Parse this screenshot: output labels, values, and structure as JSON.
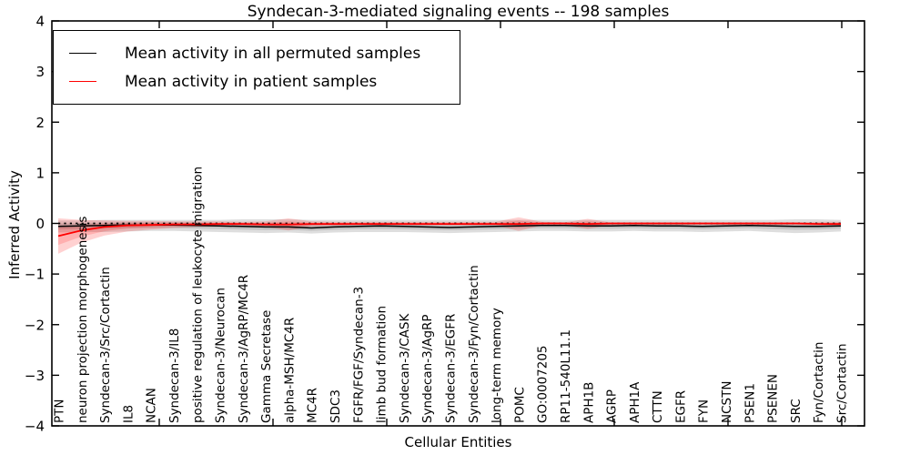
{
  "figure": {
    "title": "Syndecan-3-mediated signaling events -- 198 samples"
  },
  "legend": {
    "items": [
      {
        "label": "Mean activity in all permuted samples",
        "color": "#000000"
      },
      {
        "label": "Mean activity in patient samples",
        "color": "#ff0000"
      }
    ]
  },
  "chart_data": {
    "type": "line",
    "title": "Syndecan-3-mediated signaling events -- 198 samples",
    "xlabel": "Cellular Entities",
    "ylabel": "Inferred Activity",
    "ylim": [
      -4,
      4
    ],
    "ytick_labels": [
      "4",
      "3",
      "2",
      "1",
      "0",
      "−1",
      "−2",
      "−3",
      "−4"
    ],
    "ytick_values": [
      4,
      3,
      2,
      1,
      0,
      -1,
      -2,
      -3,
      -4
    ],
    "grid": false,
    "legend_position": "upper left",
    "reference_line_y": 0,
    "categories": [
      "PTN",
      "neuron projection morphogenesis",
      "Syndecan-3/Src/Cortactin",
      "IL8",
      "NCAN",
      "Syndecan-3/IL8",
      "positive regulation of leukocyte migration",
      "Syndecan-3/Neurocan",
      "Syndecan-3/AgRP/MC4R",
      "Gamma Secretase",
      "alpha-MSH/MC4R",
      "MC4R",
      "SDC3",
      "FGFR/FGF/Syndecan-3",
      "limb bud formation",
      "Syndecan-3/CASK",
      "Syndecan-3/AgRP",
      "Syndecan-3/EGFR",
      "Syndecan-3/Fyn/Cortactin",
      "long-term memory",
      "POMC",
      "GO:0007205",
      "RP11-540L11.1",
      "APH1B",
      "AGRP",
      "APH1A",
      "CTTN",
      "EGFR",
      "FYN",
      "NCSTN",
      "PSEN1",
      "PSENEN",
      "SRC",
      "Fyn/Cortactin",
      "Src/Cortactin"
    ],
    "series": [
      {
        "name": "Mean activity in all permuted samples",
        "color": "#000000",
        "values": [
          -0.06,
          -0.05,
          -0.04,
          -0.03,
          -0.03,
          -0.03,
          -0.04,
          -0.05,
          -0.06,
          -0.07,
          -0.07,
          -0.09,
          -0.07,
          -0.06,
          -0.05,
          -0.06,
          -0.07,
          -0.08,
          -0.07,
          -0.06,
          -0.05,
          -0.04,
          -0.04,
          -0.05,
          -0.05,
          -0.04,
          -0.05,
          -0.05,
          -0.06,
          -0.05,
          -0.04,
          -0.05,
          -0.06,
          -0.06,
          -0.05
        ]
      },
      {
        "name": "Mean activity in patient samples",
        "color": "#ff0000",
        "values": [
          -0.25,
          -0.14,
          -0.07,
          -0.04,
          -0.03,
          -0.02,
          -0.02,
          -0.01,
          -0.01,
          -0.02,
          -0.02,
          -0.01,
          -0.01,
          -0.01,
          -0.01,
          -0.01,
          -0.01,
          -0.01,
          -0.01,
          -0.01,
          -0.01,
          0,
          0,
          -0.01,
          0,
          0,
          0,
          0,
          0,
          0,
          0,
          0,
          0,
          -0.01,
          -0.01
        ]
      }
    ],
    "bands": [
      {
        "name": "permuted range",
        "color": "#000000",
        "opacity": 0.13,
        "upper": [
          0.06,
          0.06,
          0.07,
          0.07,
          0.07,
          0.07,
          0.07,
          0.07,
          0.08,
          0.08,
          0.08,
          0.07,
          0.07,
          0.07,
          0.07,
          0.07,
          0.07,
          0.07,
          0.07,
          0.07,
          0.07,
          0.07,
          0.07,
          0.07,
          0.07,
          0.07,
          0.07,
          0.07,
          0.07,
          0.07,
          0.07,
          0.07,
          0.08,
          0.08,
          0.07
        ],
        "lower": [
          -0.18,
          -0.17,
          -0.17,
          -0.16,
          -0.15,
          -0.15,
          -0.16,
          -0.17,
          -0.18,
          -0.19,
          -0.18,
          -0.2,
          -0.18,
          -0.17,
          -0.17,
          -0.17,
          -0.18,
          -0.19,
          -0.18,
          -0.17,
          -0.16,
          -0.15,
          -0.15,
          -0.16,
          -0.16,
          -0.15,
          -0.16,
          -0.16,
          -0.17,
          -0.16,
          -0.15,
          -0.17,
          -0.19,
          -0.18,
          -0.16
        ]
      },
      {
        "name": "patient range",
        "color": "#ff0000",
        "opacity": 0.18,
        "upper": [
          0.1,
          0.07,
          0.06,
          0.05,
          0.05,
          0.04,
          0.04,
          0.04,
          0.03,
          0.04,
          0.1,
          0.04,
          0.03,
          0.03,
          0.03,
          0.03,
          0.03,
          0.03,
          0.03,
          0.03,
          0.12,
          0.03,
          0.02,
          0.09,
          0.02,
          0.02,
          0.02,
          0.02,
          0.02,
          0.02,
          0.02,
          0.02,
          0.02,
          0.03,
          0.03
        ],
        "lower": [
          -0.6,
          -0.38,
          -0.24,
          -0.16,
          -0.12,
          -0.09,
          -0.07,
          -0.06,
          -0.05,
          -0.07,
          -0.14,
          -0.06,
          -0.05,
          -0.04,
          -0.04,
          -0.04,
          -0.04,
          -0.04,
          -0.04,
          -0.04,
          -0.15,
          -0.04,
          -0.03,
          -0.11,
          -0.03,
          -0.03,
          -0.03,
          -0.03,
          -0.03,
          -0.03,
          -0.03,
          -0.03,
          -0.03,
          -0.05,
          -0.05
        ]
      }
    ]
  }
}
